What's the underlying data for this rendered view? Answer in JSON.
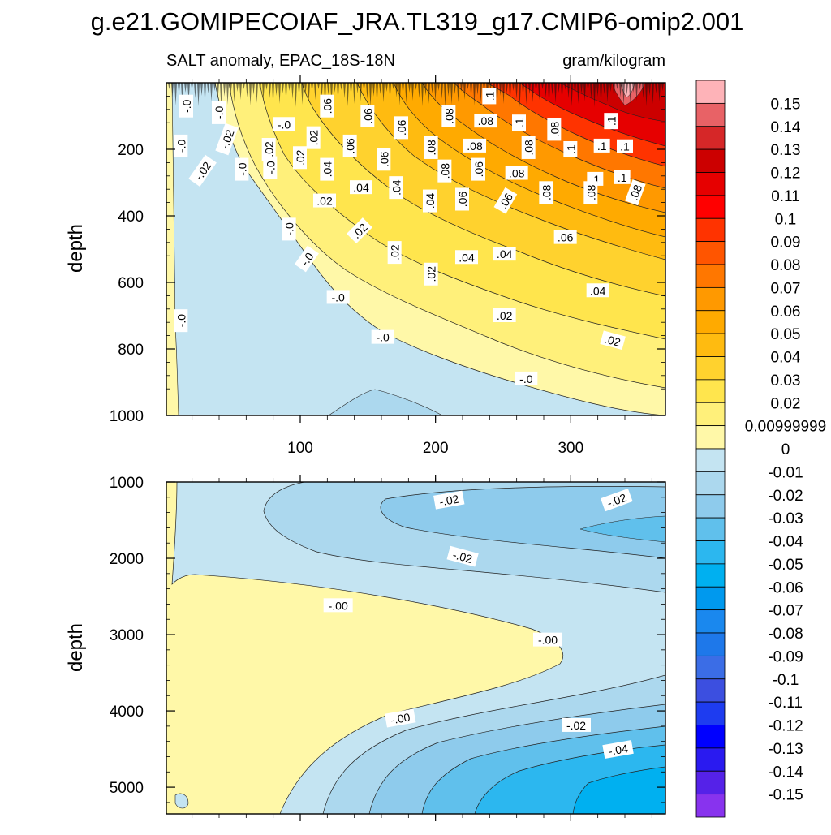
{
  "page_title": "g.e21.GOMIPECOIAF_JRA.TL319_g17.CMIP6-omip2.001",
  "chart_data": {
    "type": "heatmap",
    "title": "g.e21.GOMIPECOIAF_JRA.TL319_g17.CMIP6-omip2.001",
    "subtitle_left": "SALT anomaly, EPAC_18S-18N",
    "subtitle_right": "gram/kilogram",
    "xlim": [
      1,
      370
    ],
    "x_ticks": [
      100,
      200,
      300
    ],
    "panels": [
      {
        "name": "upper",
        "ylabel": "depth",
        "ylim": [
          0,
          1000
        ],
        "y_ticks": [
          200,
          400,
          600,
          800,
          1000
        ],
        "x_tick_labels_shown": true,
        "contour_labels": [
          {
            "text": "-.0",
            "x": 16,
            "y": 70,
            "rot": -90
          },
          {
            "text": "-.0",
            "x": 40,
            "y": 90,
            "rot": -90
          },
          {
            "text": "-.0",
            "x": 88,
            "y": 125,
            "rot": 0
          },
          {
            "text": ".06",
            "x": 120,
            "y": 70,
            "rot": -90
          },
          {
            "text": ".06",
            "x": 150,
            "y": 100,
            "rot": -90
          },
          {
            "text": ".06",
            "x": 175,
            "y": 135,
            "rot": -90
          },
          {
            "text": ".08",
            "x": 210,
            "y": 100,
            "rot": -90
          },
          {
            "text": ".1",
            "x": 240,
            "y": 40,
            "rot": -90
          },
          {
            "text": ".08",
            "x": 237,
            "y": 115,
            "rot": 0
          },
          {
            "text": ".1",
            "x": 262,
            "y": 120,
            "rot": -90
          },
          {
            "text": ".08",
            "x": 288,
            "y": 140,
            "rot": -90
          },
          {
            "text": ".1",
            "x": 330,
            "y": 115,
            "rot": -90
          },
          {
            "text": "-.0",
            "x": 12,
            "y": 190,
            "rot": -90
          },
          {
            "text": "-.02",
            "x": 46,
            "y": 170,
            "rot": -70
          },
          {
            "text": ".02",
            "x": 77,
            "y": 200,
            "rot": -90
          },
          {
            "text": ".02",
            "x": 110,
            "y": 165,
            "rot": -90
          },
          {
            "text": ".06",
            "x": 137,
            "y": 190,
            "rot": -90
          },
          {
            "text": ".06",
            "x": 162,
            "y": 230,
            "rot": -90
          },
          {
            "text": ".08",
            "x": 197,
            "y": 195,
            "rot": -90
          },
          {
            "text": ".08",
            "x": 229,
            "y": 190,
            "rot": 0
          },
          {
            "text": ".08",
            "x": 269,
            "y": 195,
            "rot": -90
          },
          {
            "text": ".1",
            "x": 300,
            "y": 200,
            "rot": -90
          },
          {
            "text": ".1",
            "x": 323,
            "y": 190,
            "rot": 0
          },
          {
            "text": ".1",
            "x": 340,
            "y": 192,
            "rot": 0
          },
          {
            "text": "-.02",
            "x": 28,
            "y": 265,
            "rot": -55
          },
          {
            "text": "-.0",
            "x": 57,
            "y": 260,
            "rot": -90
          },
          {
            "text": "-.0",
            "x": 78,
            "y": 255,
            "rot": -90
          },
          {
            "text": ".02",
            "x": 100,
            "y": 225,
            "rot": -90
          },
          {
            "text": ".04",
            "x": 120,
            "y": 260,
            "rot": -90
          },
          {
            "text": ".08",
            "x": 207,
            "y": 265,
            "rot": -90
          },
          {
            "text": ".06",
            "x": 232,
            "y": 260,
            "rot": -90
          },
          {
            "text": ".08",
            "x": 260,
            "y": 272,
            "rot": 0
          },
          {
            "text": ".1",
            "x": 318,
            "y": 290,
            "rot": 0
          },
          {
            "text": ".1",
            "x": 338,
            "y": 285,
            "rot": 0
          },
          {
            "text": ".04",
            "x": 145,
            "y": 315,
            "rot": 0
          },
          {
            "text": ".04",
            "x": 171,
            "y": 315,
            "rot": -90
          },
          {
            "text": ".02",
            "x": 118,
            "y": 355,
            "rot": 0
          },
          {
            "text": ".04",
            "x": 196,
            "y": 355,
            "rot": -90
          },
          {
            "text": ".06",
            "x": 220,
            "y": 350,
            "rot": -90
          },
          {
            "text": ".06",
            "x": 252,
            "y": 355,
            "rot": -60
          },
          {
            "text": ".08",
            "x": 282,
            "y": 330,
            "rot": -90
          },
          {
            "text": ".08",
            "x": 315,
            "y": 330,
            "rot": -90
          },
          {
            "text": ".08",
            "x": 348,
            "y": 330,
            "rot": -70
          },
          {
            "text": "-.0",
            "x": 92,
            "y": 440,
            "rot": -90
          },
          {
            "text": ".02",
            "x": 144,
            "y": 445,
            "rot": -45
          },
          {
            "text": ".06",
            "x": 296,
            "y": 465,
            "rot": 0
          },
          {
            "text": "-.0",
            "x": 105,
            "y": 530,
            "rot": -55
          },
          {
            "text": ".02",
            "x": 170,
            "y": 510,
            "rot": -90
          },
          {
            "text": ".04",
            "x": 223,
            "y": 525,
            "rot": 0
          },
          {
            "text": ".04",
            "x": 251,
            "y": 515,
            "rot": 0
          },
          {
            "text": ".02",
            "x": 197,
            "y": 575,
            "rot": -90
          },
          {
            "text": ".04",
            "x": 320,
            "y": 625,
            "rot": 0
          },
          {
            "text": "-.0",
            "x": 128,
            "y": 645,
            "rot": 0
          },
          {
            "text": ".02",
            "x": 251,
            "y": 700,
            "rot": 0
          },
          {
            "text": "-.0",
            "x": 12,
            "y": 715,
            "rot": -90
          },
          {
            "text": "-.0",
            "x": 161,
            "y": 765,
            "rot": 0
          },
          {
            "text": ".02",
            "x": 331,
            "y": 775,
            "rot": 15
          },
          {
            "text": "-.0",
            "x": 267,
            "y": 890,
            "rot": 0
          }
        ]
      },
      {
        "name": "lower",
        "ylabel": "depth",
        "ylim": [
          1000,
          5350
        ],
        "y_ticks": [
          1000,
          2000,
          3000,
          4000,
          5000
        ],
        "x_tick_labels_shown": false,
        "contour_labels": [
          {
            "text": "-.02",
            "x": 210,
            "y": 1240,
            "rot": -10
          },
          {
            "text": "-.02",
            "x": 334,
            "y": 1240,
            "rot": -20
          },
          {
            "text": "-.02",
            "x": 220,
            "y": 1980,
            "rot": 15
          },
          {
            "text": "-.00",
            "x": 128,
            "y": 2620,
            "rot": 0
          },
          {
            "text": "-.00",
            "x": 283,
            "y": 3070,
            "rot": 0
          },
          {
            "text": "-.00",
            "x": 174,
            "y": 4100,
            "rot": -10
          },
          {
            "text": "-.02",
            "x": 304,
            "y": 4190,
            "rot": 0
          },
          {
            "text": "-.04",
            "x": 335,
            "y": 4510,
            "rot": -10
          }
        ]
      }
    ],
    "colorbar": {
      "values": [
        0.15,
        0.14,
        0.13,
        0.12,
        0.11,
        0.1,
        0.09,
        0.08,
        0.07,
        0.06,
        0.05,
        0.04,
        0.03,
        0.02,
        0.01,
        0,
        -0.01,
        -0.02,
        -0.03,
        -0.04,
        -0.05,
        -0.06,
        -0.07,
        -0.08,
        -0.09,
        -0.1,
        -0.11,
        -0.12,
        -0.13,
        -0.14,
        -0.15
      ],
      "labels": [
        "0.15",
        "0.14",
        "0.13",
        "0.12",
        "0.11",
        "0.1",
        "0.09",
        "0.08",
        "0.07",
        "0.06",
        "0.05",
        "0.04",
        "0.03",
        "0.02",
        "0.00999999",
        "0",
        "-0.01",
        "-0.02",
        "-0.03",
        "-0.04",
        "-0.05",
        "-0.06",
        "-0.07",
        "-0.08",
        "-0.09",
        "-0.1",
        "-0.11",
        "-0.12",
        "-0.13",
        "-0.14",
        "-0.15"
      ],
      "colors": [
        "#feb3b8",
        "#e86266",
        "#d62728",
        "#cc0000",
        "#e60000",
        "#ff0000",
        "#ff3300",
        "#ff5500",
        "#ff7700",
        "#ff9900",
        "#ffaa00",
        "#ffbb10",
        "#ffd22e",
        "#ffe54d",
        "#fff07a",
        "#fff8a8",
        "#c4e4f2",
        "#acd8ee",
        "#8ecbec",
        "#60c0ec",
        "#2cb7ef",
        "#00b0f0",
        "#0099ee",
        "#1a88ee",
        "#1e78ea",
        "#3b6de6",
        "#3c4fe0",
        "#1e3cf0",
        "#0000ff",
        "#2a1af0",
        "#5522e8",
        "#8833ee"
      ]
    }
  }
}
